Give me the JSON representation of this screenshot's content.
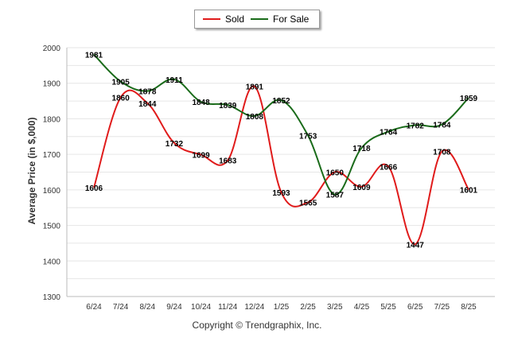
{
  "chart_data": {
    "type": "line",
    "ylabel": "Average Price (in $,000)",
    "ylim": [
      1300,
      2000
    ],
    "ytick_step": 50,
    "grid": true,
    "legend_position": "top-center",
    "categories": [
      "6/24",
      "7/24",
      "8/24",
      "9/24",
      "10/24",
      "11/24",
      "12/24",
      "1/25",
      "2/25",
      "3/25",
      "4/25",
      "5/25",
      "6/25",
      "7/25",
      "8/25"
    ],
    "series": [
      {
        "name": "Sold",
        "color": "#e01b1b",
        "values": [
          1606,
          1860,
          1844,
          1732,
          1699,
          1683,
          1891,
          1593,
          1565,
          1650,
          1609,
          1666,
          1447,
          1708,
          1601
        ]
      },
      {
        "name": "For Sale",
        "color": "#1a6b1a",
        "values": [
          1981,
          1905,
          1878,
          1911,
          1848,
          1839,
          1808,
          1852,
          1753,
          1587,
          1718,
          1764,
          1782,
          1784,
          1859
        ]
      }
    ]
  },
  "footer": {
    "copyright": "Copyright © Trendgraphix, Inc."
  }
}
